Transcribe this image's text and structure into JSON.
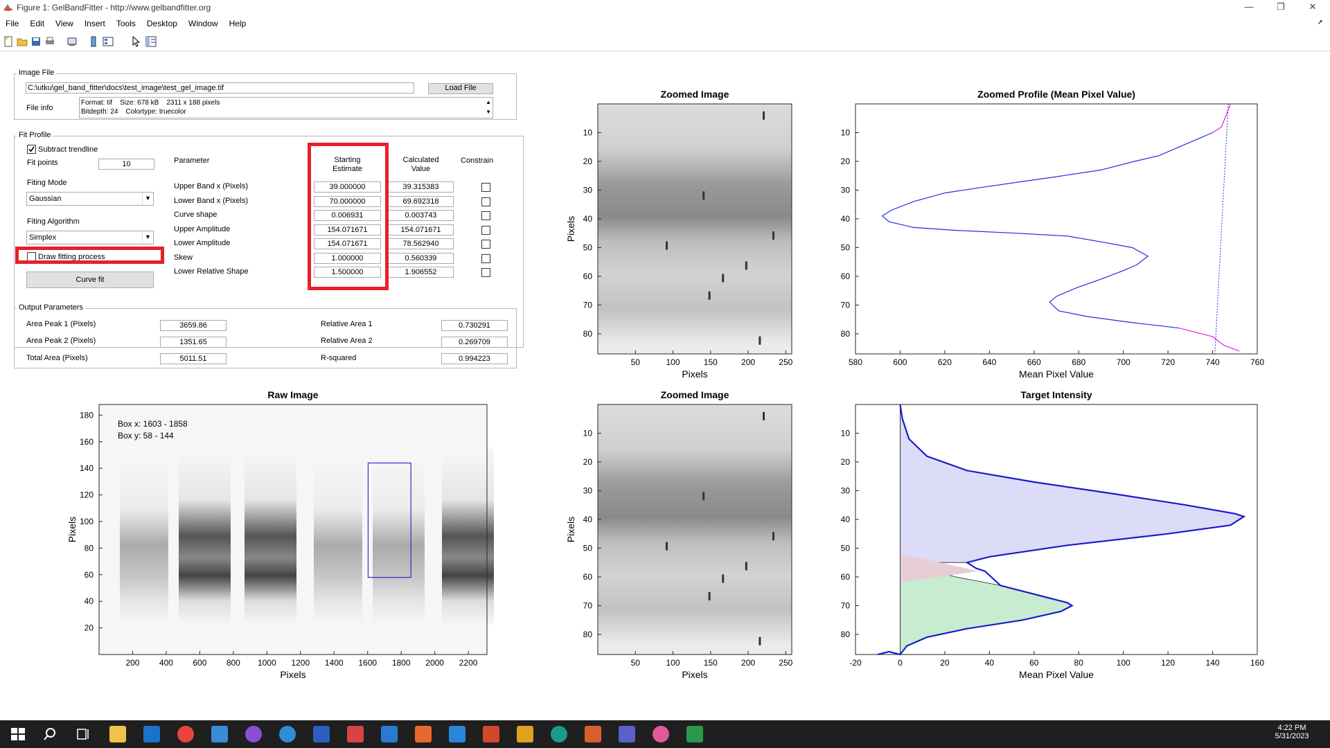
{
  "window": {
    "title": "Figure 1: GelBandFitter - http://www.gelbandfitter.org"
  },
  "menu": [
    "File",
    "Edit",
    "View",
    "Insert",
    "Tools",
    "Desktop",
    "Window",
    "Help"
  ],
  "image_file": {
    "group_label": "Image File",
    "path": "C:\\utku\\gel_band_fitter\\docs\\test_image\\test_gel_image.tif",
    "load_label": "Load File",
    "file_info_label": "File info",
    "info_line1": "Format: tif    Size: 678 kB    2311 x 188 pixels",
    "info_line2": "Bitdepth: 24    Colortype: truecolor"
  },
  "fit_profile": {
    "group_label": "Fit Profile",
    "subtract_trendline": "Subtract trendline",
    "fit_points_label": "Fit points",
    "fit_points": "10",
    "fitting_mode_label": "Fiting Mode",
    "fitting_mode": "Gaussian",
    "fitting_algorithm_label": "Fiting Algorithm",
    "fitting_algorithm": "Simplex",
    "draw_fitting": "Draw fitting process",
    "curve_fit": "Curve fit",
    "col_parameter": "Parameter",
    "col_start_1": "Starting",
    "col_start_2": "Estimate",
    "col_calc_1": "Calculated",
    "col_calc_2": "Value",
    "col_constrain": "Constrain",
    "rows": [
      {
        "name": "Upper Band x (Pixels)",
        "start": "39.000000",
        "calc": "39.315383"
      },
      {
        "name": "Lower Band x (Pixels)",
        "start": "70.000000",
        "calc": "69.692318"
      },
      {
        "name": "Curve shape",
        "start": "0.006931",
        "calc": "0.003743"
      },
      {
        "name": "Upper Amplitude",
        "start": "154.071671",
        "calc": "154.071671"
      },
      {
        "name": "Lower Amplitude",
        "start": "154.071671",
        "calc": "78.562940"
      },
      {
        "name": "Skew",
        "start": "1.000000",
        "calc": "0.560339"
      },
      {
        "name": "Lower Relative Shape",
        "start": "1.500000",
        "calc": "1.906552"
      }
    ]
  },
  "output": {
    "group_label": "Output Parameters",
    "area1_label": "Area Peak 1 (Pixels)",
    "area1": "3659.86",
    "area2_label": "Area Peak 2  (Pixels)",
    "area2": "1351.65",
    "total_label": "Total Area  (Pixels)",
    "total": "5011.51",
    "rel1_label": "Relative Area 1",
    "rel1": "0.730291",
    "rel2_label": "Relative Area 2",
    "rel2": "0.269709",
    "r2_label": "R-squared",
    "r2": "0.994223"
  },
  "plots": {
    "raw": {
      "title": "Raw Image",
      "xlabel": "Pixels",
      "ylabel": "Pixels",
      "box_x": "Box x: 1603 - 1858",
      "box_y": "Box y: 58 - 144",
      "xticks": [
        "200",
        "400",
        "600",
        "800",
        "1000",
        "1200",
        "1400",
        "1600",
        "1800",
        "2000",
        "2200"
      ],
      "yticks": [
        "180",
        "160",
        "140",
        "120",
        "100",
        "80",
        "60",
        "40",
        "20"
      ]
    },
    "zoom_top": {
      "title": "Zoomed Image",
      "xlabel": "Pixels",
      "ylabel": "Pixels",
      "xticks": [
        "50",
        "100",
        "150",
        "200",
        "250"
      ],
      "yticks": [
        "10",
        "20",
        "30",
        "40",
        "50",
        "60",
        "70",
        "80"
      ]
    },
    "zoom_bottom": {
      "title": "Zoomed Image",
      "xlabel": "Pixels",
      "ylabel": "Pixels",
      "xticks": [
        "50",
        "100",
        "150",
        "200",
        "250"
      ],
      "yticks": [
        "10",
        "20",
        "30",
        "40",
        "50",
        "60",
        "70",
        "80"
      ]
    },
    "profile": {
      "title": "Zoomed Profile (Mean Pixel Value)",
      "xlabel": "Mean Pixel Value",
      "xticks": [
        "580",
        "600",
        "620",
        "640",
        "660",
        "680",
        "700",
        "720",
        "740",
        "760"
      ],
      "yticks": [
        "10",
        "20",
        "30",
        "40",
        "50",
        "60",
        "70",
        "80"
      ]
    },
    "target": {
      "title": "Target Intensity",
      "xlabel": "Mean Pixel Value",
      "xticks": [
        "-20",
        "0",
        "20",
        "40",
        "60",
        "80",
        "100",
        "120",
        "140",
        "160"
      ],
      "yticks": [
        "10",
        "20",
        "30",
        "40",
        "50",
        "60",
        "70",
        "80"
      ]
    }
  },
  "chart_data": [
    {
      "type": "line",
      "title": "Zoomed Profile (Mean Pixel Value)",
      "xlabel": "Mean Pixel Value",
      "ylabel": "",
      "xlim": [
        580,
        760
      ],
      "ylim": [
        87,
        0
      ],
      "series": [
        {
          "values_xy": [
            [
              748,
              0
            ],
            [
              745,
              6
            ],
            [
              744,
              8
            ],
            [
              740,
              10
            ],
            [
              734,
              12
            ],
            [
              728,
              14
            ],
            [
              716,
              18
            ],
            [
              705,
              20
            ],
            [
              690,
              23
            ],
            [
              673,
              25
            ],
            [
              655,
              27
            ],
            [
              637,
              29
            ],
            [
              620,
              31
            ],
            [
              606,
              34
            ],
            [
              596,
              37
            ],
            [
              592,
              39
            ],
            [
              595,
              41
            ],
            [
              606,
              43
            ],
            [
              625,
              44
            ],
            [
              652,
              45
            ],
            [
              675,
              46
            ],
            [
              690,
              48
            ],
            [
              704,
              50
            ],
            [
              711,
              53
            ],
            [
              706,
              56
            ],
            [
              700,
              58
            ],
            [
              690,
              61
            ],
            [
              679,
              64
            ],
            [
              670,
              67
            ],
            [
              667,
              69
            ],
            [
              671,
              72
            ],
            [
              684,
              74
            ],
            [
              703,
              76
            ],
            [
              725,
              78
            ],
            [
              740,
              81
            ],
            [
              745,
              84
            ],
            [
              752,
              86
            ]
          ]
        },
        {
          "values_xy": [
            [
              747,
              0
            ],
            [
              741,
              87
            ]
          ]
        }
      ]
    },
    {
      "type": "area",
      "title": "Target Intensity",
      "xlabel": "Mean Pixel Value",
      "ylabel": "",
      "xlim": [
        -20,
        160
      ],
      "ylim": [
        87,
        0
      ],
      "series": [
        {
          "values_xy": [
            [
              0,
              0
            ],
            [
              1,
              5
            ],
            [
              4,
              12
            ],
            [
              12,
              18
            ],
            [
              30,
              23
            ],
            [
              60,
              27
            ],
            [
              95,
              31
            ],
            [
              128,
              35
            ],
            [
              150,
              38
            ],
            [
              154,
              39
            ],
            [
              148,
              42
            ],
            [
              120,
              45
            ],
            [
              75,
              49
            ],
            [
              40,
              53
            ],
            [
              30,
              55
            ]
          ]
        },
        {
          "values_xy": [
            [
              0,
              55
            ],
            [
              10,
              57
            ],
            [
              25,
              60
            ],
            [
              45,
              63
            ],
            [
              65,
              67
            ],
            [
              75,
              69
            ],
            [
              77,
              70
            ],
            [
              72,
              72
            ],
            [
              55,
              75
            ],
            [
              30,
              78
            ],
            [
              12,
              81
            ],
            [
              3,
              84
            ],
            [
              0,
              87
            ]
          ]
        }
      ]
    }
  ],
  "taskbar": {
    "time": "4:22 PM",
    "date": "5/31/2023"
  }
}
